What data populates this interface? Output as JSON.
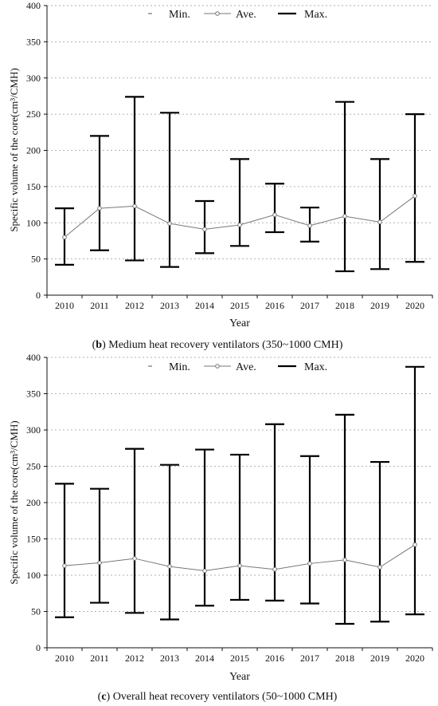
{
  "chart_data": [
    {
      "type": "line",
      "xlabel": "Year",
      "ylabel": "Specific volume of the core(cm³/CMH)",
      "ylim": [
        0,
        400
      ],
      "yticks": [
        0,
        50,
        100,
        150,
        200,
        250,
        300,
        350,
        400
      ],
      "grid": true,
      "legend": [
        "Min.",
        "Ave.",
        "Max."
      ],
      "legend_placement": "top",
      "caption_letter": "b",
      "caption": "Medium heat recovery ventilators (350~1000 CMH)",
      "categories": [
        "2010",
        "2011",
        "2012",
        "2013",
        "2014",
        "2015",
        "2016",
        "2017",
        "2018",
        "2019",
        "2020"
      ],
      "series": [
        {
          "name": "Min.",
          "values": [
            42,
            62,
            48,
            39,
            58,
            68,
            87,
            74,
            33,
            36,
            46
          ]
        },
        {
          "name": "Ave.",
          "values": [
            80,
            120,
            123,
            99,
            91,
            97,
            111,
            96,
            109,
            101,
            137
          ]
        },
        {
          "name": "Max.",
          "values": [
            120,
            220,
            274,
            252,
            130,
            188,
            154,
            121,
            267,
            188,
            250
          ]
        }
      ]
    },
    {
      "type": "line",
      "xlabel": "Year",
      "ylabel": "Specific volume of the core(cm³/CMH)",
      "ylim": [
        0,
        400
      ],
      "yticks": [
        0,
        50,
        100,
        150,
        200,
        250,
        300,
        350,
        400
      ],
      "grid": true,
      "legend": [
        "Min.",
        "Ave.",
        "Max."
      ],
      "legend_placement": "top",
      "caption_letter": "c",
      "caption": "Overall heat recovery ventilators (50~1000 CMH)",
      "categories": [
        "2010",
        "2011",
        "2012",
        "2013",
        "2014",
        "2015",
        "2016",
        "2017",
        "2018",
        "2019",
        "2020"
      ],
      "series": [
        {
          "name": "Min.",
          "values": [
            42,
            62,
            48,
            39,
            58,
            66,
            65,
            61,
            33,
            36,
            46
          ]
        },
        {
          "name": "Ave.",
          "values": [
            113,
            117,
            123,
            112,
            106,
            113,
            108,
            116,
            121,
            111,
            142
          ]
        },
        {
          "name": "Max.",
          "values": [
            226,
            219,
            274,
            252,
            273,
            266,
            308,
            264,
            321,
            256,
            387
          ]
        }
      ]
    }
  ]
}
